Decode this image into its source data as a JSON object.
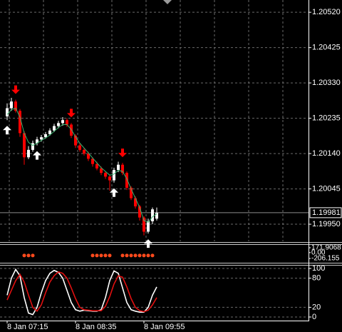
{
  "chart_data": [
    {
      "type": "candlestick",
      "open": [
        1.2024,
        1.20262,
        1.2028,
        1.20255,
        1.20195,
        1.2013,
        1.2015,
        1.20168,
        1.20178,
        1.20184,
        1.20192,
        1.20202,
        1.20214,
        1.20222,
        1.2023,
        1.20218,
        1.20188,
        1.20162,
        1.2015,
        1.2014,
        1.20126,
        1.20112,
        1.201,
        1.20088,
        1.20078,
        1.20068,
        1.20096,
        1.2011,
        1.20088,
        1.20048,
        1.2002,
        1.19998,
        1.19968,
        1.1993,
        1.19958,
        1.19965
      ],
      "high": [
        1.20275,
        1.2029,
        1.20285,
        1.2026,
        1.202,
        1.2016,
        1.20175,
        1.20185,
        1.2019,
        1.20198,
        1.20208,
        1.2022,
        1.20228,
        1.20238,
        1.20235,
        1.20222,
        1.20192,
        1.20168,
        1.20155,
        1.20145,
        1.2013,
        1.20118,
        1.20105,
        1.20092,
        1.20082,
        1.20102,
        1.20118,
        1.20115,
        1.20092,
        1.20052,
        1.20025,
        1.20002,
        1.19972,
        1.19965,
        1.19995,
        1.19995
      ],
      "low": [
        1.2023,
        1.20255,
        1.2025,
        1.20185,
        1.2011,
        1.20125,
        1.20145,
        1.20162,
        1.20172,
        1.2018,
        1.20188,
        1.20198,
        1.20208,
        1.20215,
        1.20212,
        1.20182,
        1.20155,
        1.20145,
        1.20135,
        1.2012,
        1.20105,
        1.20095,
        1.20082,
        1.20072,
        1.2004,
        1.20062,
        1.2009,
        1.20082,
        1.20042,
        1.20015,
        1.19992,
        1.1996,
        1.1992,
        1.19925,
        1.1995,
        1.1996
      ],
      "close": [
        1.20262,
        1.2028,
        1.20255,
        1.20195,
        1.2013,
        1.2015,
        1.20168,
        1.20178,
        1.20184,
        1.20192,
        1.20202,
        1.20214,
        1.20222,
        1.2023,
        1.20218,
        1.20188,
        1.20162,
        1.2015,
        1.2014,
        1.20126,
        1.20112,
        1.201,
        1.20088,
        1.20078,
        1.20068,
        1.20096,
        1.2011,
        1.20088,
        1.20048,
        1.2002,
        1.19998,
        1.19968,
        1.1993,
        1.19958,
        1.1999,
        1.19981
      ],
      "up_color": "#ffffff",
      "down_color": "#ff0000",
      "ma": {
        "color": "#3cb371",
        "values": [
          1.20245,
          1.20258,
          1.20262,
          1.20238,
          1.20195,
          1.2017,
          1.20162,
          1.20168,
          1.20175,
          1.20182,
          1.2019,
          1.202,
          1.2021,
          1.20218,
          1.20218,
          1.20205,
          1.20185,
          1.20168,
          1.20155,
          1.20142,
          1.20128,
          1.20115,
          1.20102,
          1.20092,
          1.20082,
          1.20085,
          1.20095,
          1.20092,
          1.20072,
          1.20045,
          1.2002,
          1.19995,
          1.1996,
          1.19955,
          1.1997,
          1.19978
        ]
      },
      "up_signals": [
        0,
        7,
        25,
        33
      ],
      "up_signal_color": "#ffffff",
      "down_signals": [
        2,
        15,
        27
      ],
      "down_signal_color": "#ff0000",
      "current_price": 1.19981,
      "ylim": [
        1.19904,
        1.20553
      ],
      "yticks": [
        {
          "value": 1.2052,
          "label": "1.20520"
        },
        1.20425,
        {
          "value": 1.2033,
          "label": "1.20330"
        },
        1.20235,
        {
          "value": 1.2014,
          "label": "1.20140"
        },
        1.20045,
        {
          "value": 1.1995,
          "label": "1.19950"
        }
      ],
      "grid": true
    },
    {
      "type": "dots",
      "values": [
        null,
        null,
        null,
        null,
        0,
        0,
        0,
        null,
        null,
        null,
        null,
        null,
        null,
        null,
        null,
        null,
        null,
        null,
        null,
        null,
        0,
        0,
        0,
        0,
        0,
        null,
        null,
        0,
        0,
        0,
        0,
        0,
        0,
        0,
        0,
        null
      ],
      "color": "#ff4a1c",
      "ylim": [
        -206.155,
        171.9068
      ],
      "yticks": [
        171.9068,
        {
          "value": 0,
          "label": "0.00"
        },
        -206.155
      ]
    },
    {
      "type": "line",
      "categories": [
        "8 Jan 07:15",
        null,
        null,
        null,
        null,
        null,
        null,
        null,
        null,
        null,
        null,
        null,
        null,
        null,
        null,
        null,
        "8 Jan 08:35",
        null,
        null,
        null,
        null,
        null,
        null,
        null,
        null,
        null,
        null,
        null,
        null,
        null,
        null,
        null,
        "8 Jan 09:55",
        null,
        null,
        null
      ],
      "series": [
        {
          "color": "#ffffff",
          "values": [
            45,
            80,
            98,
            85,
            40,
            8,
            5,
            20,
            50,
            75,
            90,
            96,
            92,
            80,
            55,
            30,
            15,
            12,
            14,
            13,
            12,
            12,
            15,
            40,
            75,
            95,
            90,
            60,
            30,
            15,
            12,
            10,
            10,
            20,
            45,
            62
          ]
        },
        {
          "color": "#e01010",
          "values": [
            35,
            55,
            75,
            88,
            72,
            45,
            20,
            12,
            25,
            50,
            72,
            85,
            93,
            90,
            80,
            60,
            38,
            20,
            15,
            14,
            13,
            13,
            13,
            22,
            42,
            68,
            85,
            82,
            62,
            38,
            20,
            13,
            11,
            14,
            25,
            40
          ]
        }
      ],
      "ylim": [
        0,
        100
      ],
      "yticks": [
        0,
        20,
        80,
        100
      ]
    }
  ]
}
